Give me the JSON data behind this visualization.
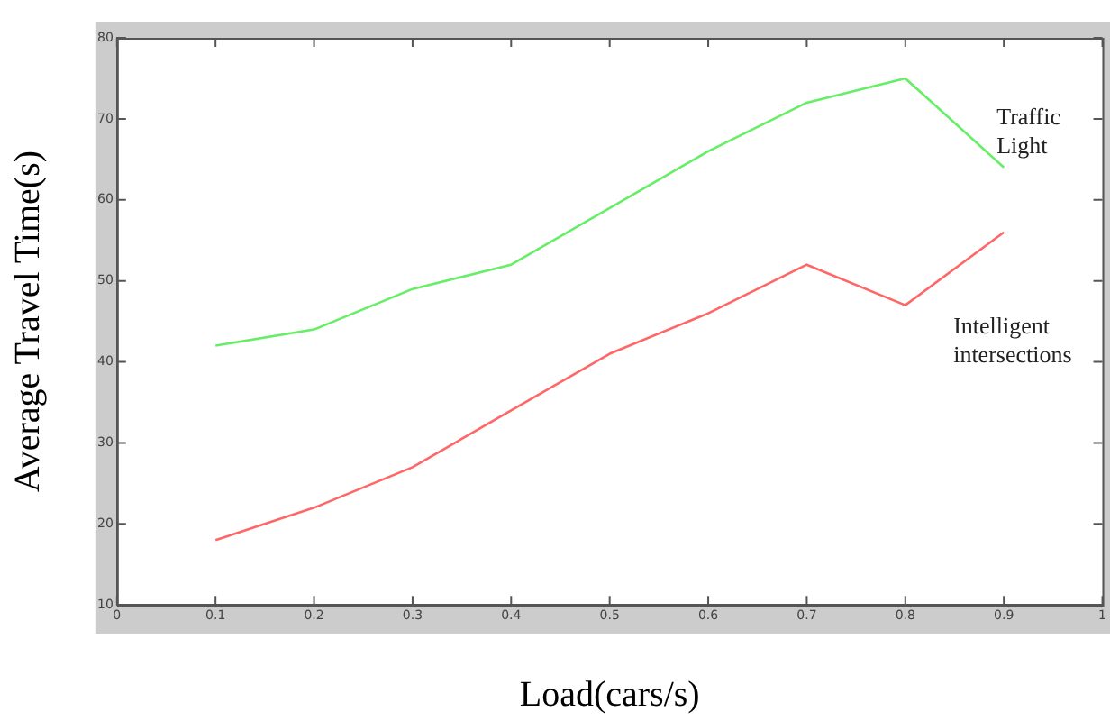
{
  "chart_data": {
    "type": "line",
    "xlabel": "Load(cars/s)",
    "ylabel": "Average Travel Time(s)",
    "x": [
      0.1,
      0.2,
      0.3,
      0.4,
      0.5,
      0.6,
      0.7,
      0.8,
      0.9
    ],
    "series": [
      {
        "name": "Traffic Light",
        "color": "#66ee66",
        "values": [
          42,
          44,
          49,
          52,
          59,
          66,
          72,
          75,
          64
        ]
      },
      {
        "name": "Intelligent intersections",
        "color": "#ff6666",
        "values": [
          18,
          22,
          27,
          34,
          41,
          46,
          52,
          47,
          56
        ]
      }
    ],
    "xlim": [
      0,
      1
    ],
    "xticks": [
      0,
      0.1,
      0.2,
      0.3,
      0.4,
      0.5,
      0.6,
      0.7,
      0.8,
      0.9,
      1
    ],
    "ylim": [
      10,
      80
    ],
    "yticks": [
      10,
      20,
      30,
      40,
      50,
      60,
      70,
      80
    ],
    "grid": false,
    "legend": false,
    "marker": "none",
    "line_style": "solid"
  }
}
